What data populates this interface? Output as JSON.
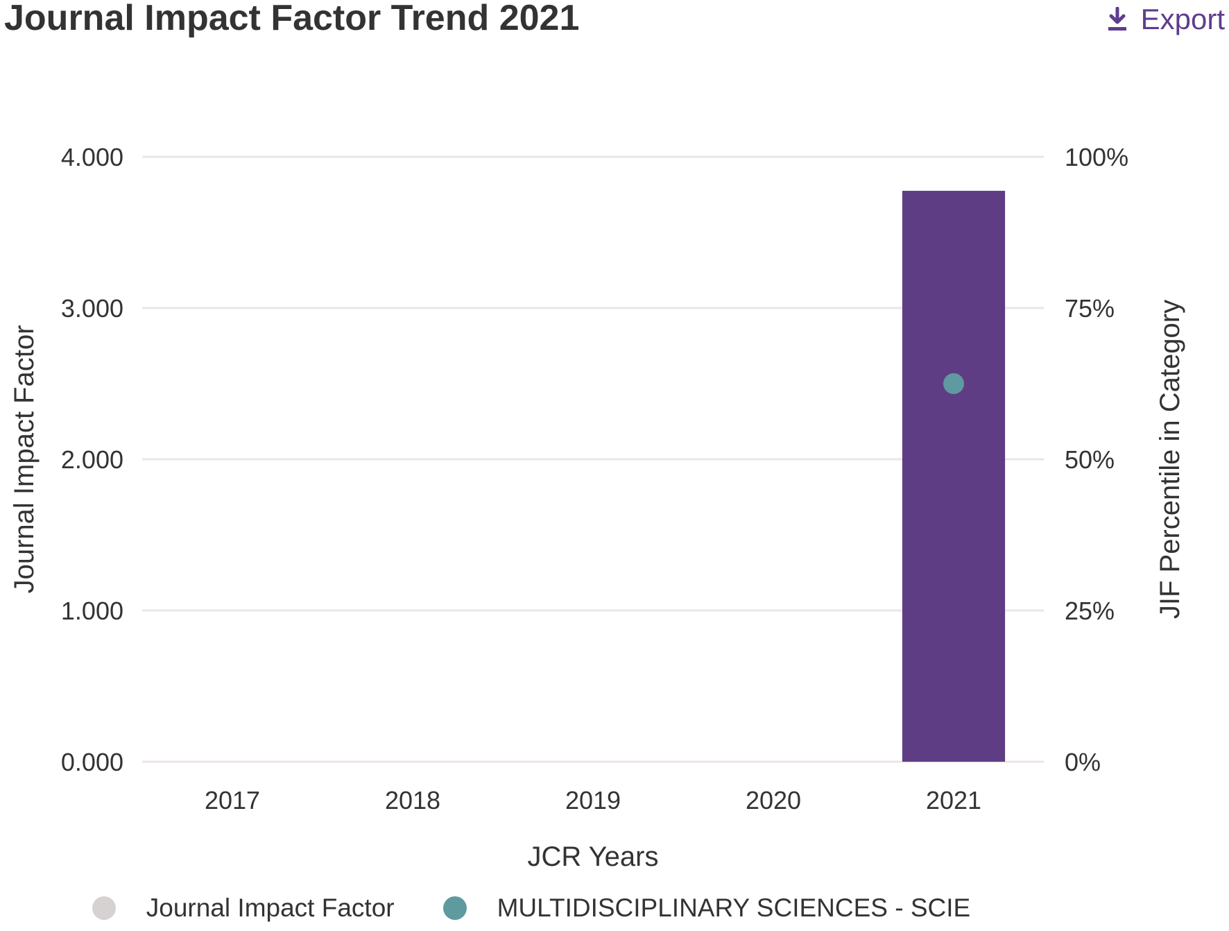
{
  "header": {
    "title": "Journal Impact Factor Trend 2021",
    "export_label": "Export",
    "export_icon": "download-icon"
  },
  "colors": {
    "bar": "#5e3d85",
    "percentile_point": "#5f9aa0",
    "legend_jif": "#d7d2d2",
    "gridline": "#ece5e5",
    "text": "#333333",
    "accent": "#5e3d8e"
  },
  "chart_data": {
    "type": "bar",
    "categories": [
      "2017",
      "2018",
      "2019",
      "2020",
      "2021"
    ],
    "series": [
      {
        "name": "Journal Impact Factor",
        "kind": "bar",
        "axis": "left",
        "values": [
          null,
          null,
          null,
          null,
          3.775
        ]
      },
      {
        "name": "MULTIDISCIPLINARY SCIENCES - SCIE",
        "kind": "scatter",
        "axis": "right",
        "values": [
          null,
          null,
          null,
          null,
          62.5
        ]
      }
    ],
    "xlabel": "JCR Years",
    "ylabel": "Journal Impact Factor",
    "y2label": "JIF Percentile in Category",
    "ylim": [
      0,
      4
    ],
    "y2lim": [
      0,
      100
    ],
    "yticks": [
      "0.000",
      "1.000",
      "2.000",
      "3.000",
      "4.000"
    ],
    "y2ticks": [
      "0%",
      "25%",
      "50%",
      "75%",
      "100%"
    ],
    "grid": true,
    "legend_position": "bottom"
  },
  "legend": {
    "items": [
      {
        "label": "Journal Impact Factor"
      },
      {
        "label": "MULTIDISCIPLINARY SCIENCES - SCIE"
      }
    ]
  }
}
